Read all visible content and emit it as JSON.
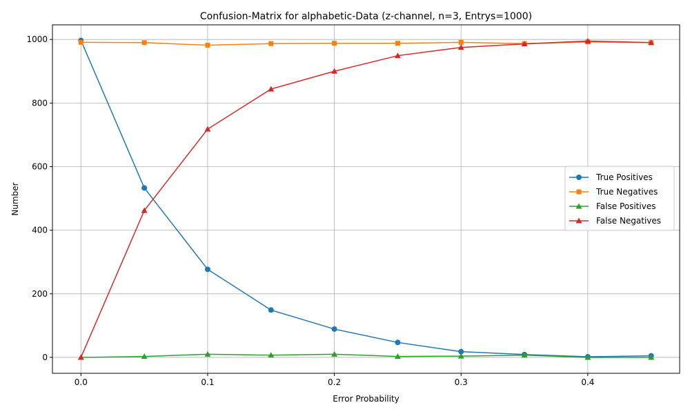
{
  "chart_data": {
    "type": "line",
    "title": "Confusion-Matrix for alphabetic-Data (z-channel, n=3, Entrys=1000)",
    "xlabel": "Error Probability",
    "ylabel": "Number",
    "xlim": [
      -0.0225,
      0.4725
    ],
    "ylim": [
      -50,
      1046
    ],
    "xticks": [
      0.0,
      0.1,
      0.2,
      0.3,
      0.4
    ],
    "xtick_labels": [
      "0.0",
      "0.1",
      "0.2",
      "0.3",
      "0.4"
    ],
    "yticks": [
      0,
      200,
      400,
      600,
      800,
      1000
    ],
    "ytick_labels": [
      "0",
      "200",
      "400",
      "600",
      "800",
      "1000"
    ],
    "grid": true,
    "legend_position": "center-right",
    "x": [
      0.0,
      0.05,
      0.1,
      0.15,
      0.2,
      0.25,
      0.3,
      0.35,
      0.4,
      0.45
    ],
    "series": [
      {
        "name": "True Positives",
        "color": "#1f77b4",
        "marker": "circle",
        "values": [
          997,
          533,
          277,
          149,
          89,
          47,
          18,
          9,
          2,
          5
        ]
      },
      {
        "name": "True Negatives",
        "color": "#ff7f0e",
        "marker": "square",
        "values": [
          991,
          990,
          982,
          987,
          988,
          988,
          991,
          987,
          992,
          990
        ]
      },
      {
        "name": "False Positives",
        "color": "#2ca02c",
        "marker": "triangle",
        "values": [
          0,
          3,
          10,
          7,
          10,
          3,
          4,
          7,
          0,
          0
        ]
      },
      {
        "name": "False Negatives",
        "color": "#d62728",
        "marker": "triangle",
        "values": [
          0,
          462,
          718,
          844,
          900,
          949,
          975,
          986,
          995,
          990
        ]
      }
    ]
  }
}
